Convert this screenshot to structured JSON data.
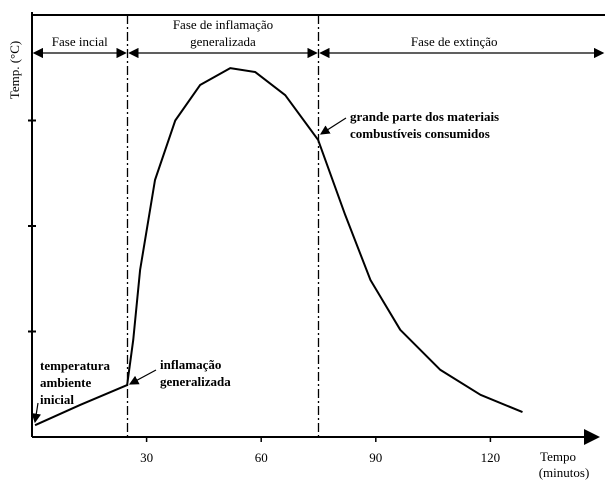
{
  "chart_data": {
    "type": "line",
    "ylabel": "Temp. (°C)",
    "xlabel": [
      "Tempo",
      "(minutos)"
    ],
    "x": [
      0.8,
      12.6,
      24.9,
      26.5,
      28.3,
      32.2,
      37.5,
      44,
      51.9,
      58.4,
      66.3,
      74.9,
      82,
      88.6,
      96.4,
      106.9,
      117.4,
      128.4
    ],
    "values": [
      2.8,
      7.6,
      12.3,
      23,
      39.6,
      60.9,
      75,
      83.4,
      87.4,
      86.5,
      81,
      70.4,
      52.6,
      37.2,
      25.4,
      15.9,
      10,
      5.9
    ],
    "color": "#000000",
    "xlim": [
      0,
      150
    ],
    "ylim": [
      0,
      100
    ],
    "xticks": [
      30,
      60,
      90,
      120
    ],
    "yticks": [
      25,
      50,
      75
    ],
    "grid": false,
    "dividers": [
      25,
      75
    ],
    "phases": [
      [
        "Fase incial"
      ],
      [
        "Fase de inflamação",
        "generalizada"
      ],
      [
        "Fase de extinção"
      ]
    ],
    "annotations": [
      [
        "temperatura",
        "ambiente",
        "inicial"
      ],
      [
        "inflamação",
        "generalizada"
      ],
      [
        "grande parte dos materiais",
        "combustíveis consumidos"
      ]
    ]
  }
}
